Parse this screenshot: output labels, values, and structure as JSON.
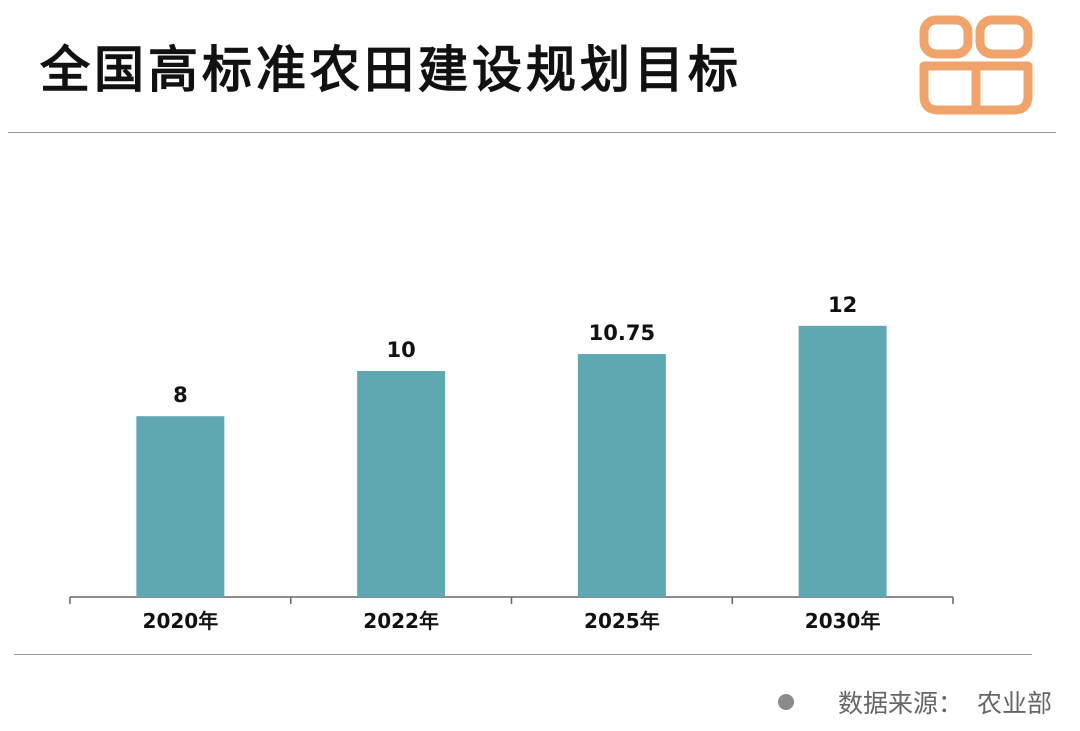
{
  "title": "全国高标准农田建设规划目标",
  "source": {
    "label": "数据来源：",
    "value": "农业部"
  },
  "colors": {
    "bar": "#5fa8b2",
    "logo": "#f0a46c",
    "axis": "#666666"
  },
  "logo_icon": "orange-rounded-blocks-logo",
  "chart_data": {
    "type": "bar",
    "title": "全国高标准农田建设规划目标",
    "categories": [
      "2020年",
      "2022年",
      "2025年",
      "2030年"
    ],
    "values": [
      8,
      10,
      10.75,
      12
    ],
    "data_labels": [
      "8",
      "10",
      "10.75",
      "12"
    ],
    "xlabel": "",
    "ylabel": "",
    "ylim": [
      0,
      12.6
    ],
    "grid": false,
    "legend": "none"
  }
}
